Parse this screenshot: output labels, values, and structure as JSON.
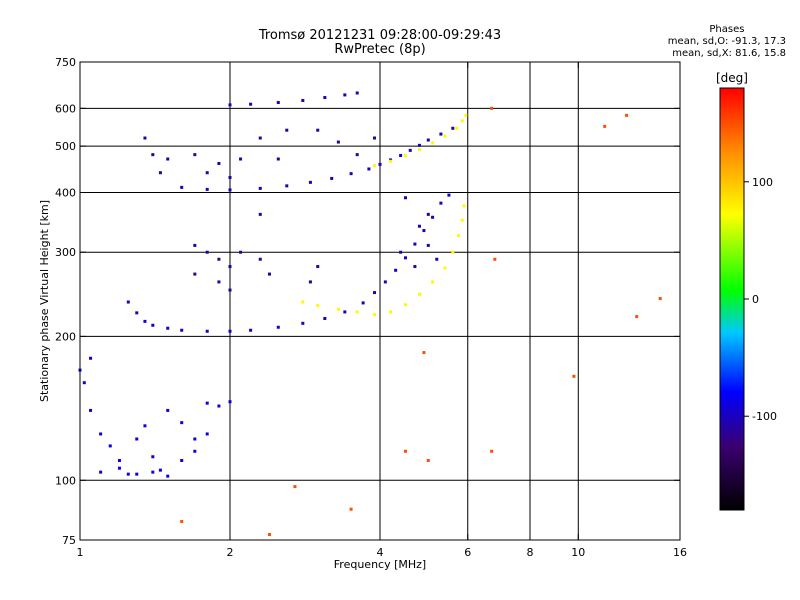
{
  "header": {
    "title": "Tromsø 20121231 09:28:00-09:29:43",
    "subtitle": "RwPretec (8p)"
  },
  "phases_box": {
    "heading": "Phases",
    "line_o": "mean, sd,O: -91.3, 17.3",
    "line_x": "mean, sd,X: 81.6, 15.8"
  },
  "chart_data": {
    "type": "scatter",
    "xlabel": "Frequency [MHz]",
    "ylabel": "Stationary phase Virtual Height [km]",
    "x_scale": "log",
    "y_scale": "log",
    "xlim": [
      1,
      16
    ],
    "ylim": [
      75,
      750
    ],
    "x_ticks": [
      1,
      2,
      4,
      6,
      8,
      10,
      16
    ],
    "y_ticks": [
      75,
      100,
      200,
      300,
      400,
      500,
      600,
      750
    ],
    "grid": true,
    "colorbar": {
      "label": "[deg]",
      "range": [
        -180,
        180
      ],
      "ticks": [
        100,
        0,
        -100
      ],
      "colormap": "rainbow"
    },
    "series": [
      {
        "color_value": -100,
        "points": [
          [
            1.25,
            236
          ],
          [
            1.3,
            224
          ],
          [
            1.35,
            215
          ],
          [
            1.4,
            211
          ],
          [
            1.5,
            208
          ],
          [
            1.6,
            206
          ],
          [
            1.8,
            205
          ],
          [
            2.0,
            205
          ],
          [
            2.2,
            206
          ],
          [
            2.5,
            209
          ],
          [
            2.8,
            213
          ],
          [
            3.1,
            218
          ],
          [
            3.4,
            225
          ],
          [
            3.7,
            235
          ],
          [
            3.9,
            247
          ],
          [
            4.1,
            260
          ],
          [
            4.3,
            275
          ],
          [
            4.5,
            292
          ],
          [
            4.7,
            312
          ],
          [
            4.9,
            333
          ],
          [
            5.1,
            355
          ],
          [
            5.3,
            380
          ],
          [
            5.5,
            395
          ]
        ]
      },
      {
        "color_value": 75,
        "points": [
          [
            2.8,
            236
          ],
          [
            3.0,
            232
          ],
          [
            3.3,
            228
          ],
          [
            3.6,
            225
          ],
          [
            3.9,
            222
          ],
          [
            4.2,
            225
          ],
          [
            4.5,
            233
          ],
          [
            4.8,
            245
          ],
          [
            5.1,
            260
          ],
          [
            5.4,
            278
          ],
          [
            5.6,
            300
          ],
          [
            5.75,
            325
          ],
          [
            5.85,
            350
          ],
          [
            5.9,
            375
          ]
        ]
      },
      {
        "color_value": -100,
        "points": [
          [
            1.6,
            410
          ],
          [
            1.8,
            406
          ],
          [
            2.0,
            405
          ],
          [
            2.3,
            408
          ],
          [
            2.6,
            413
          ],
          [
            2.9,
            420
          ],
          [
            3.2,
            428
          ],
          [
            3.5,
            438
          ],
          [
            3.8,
            448
          ],
          [
            4.0,
            458
          ],
          [
            4.2,
            468
          ],
          [
            4.4,
            478
          ],
          [
            4.6,
            490
          ],
          [
            4.8,
            502
          ],
          [
            5.0,
            515
          ],
          [
            5.3,
            530
          ],
          [
            5.6,
            545
          ]
        ]
      },
      {
        "color_value": 75,
        "points": [
          [
            3.9,
            455
          ],
          [
            4.2,
            465
          ],
          [
            4.5,
            478
          ],
          [
            4.8,
            492
          ],
          [
            5.1,
            508
          ],
          [
            5.4,
            525
          ],
          [
            5.7,
            545
          ],
          [
            5.85,
            565
          ],
          [
            5.95,
            580
          ]
        ]
      },
      {
        "color_value": -100,
        "points": [
          [
            2.0,
            610
          ],
          [
            2.2,
            612
          ],
          [
            2.5,
            617
          ],
          [
            2.8,
            623
          ],
          [
            3.1,
            632
          ],
          [
            3.4,
            640
          ],
          [
            3.6,
            646
          ]
        ]
      },
      {
        "color_value": -110,
        "points": [
          [
            1.35,
            520
          ],
          [
            1.4,
            480
          ],
          [
            1.45,
            440
          ],
          [
            1.5,
            470
          ],
          [
            1.7,
            480
          ],
          [
            1.8,
            440
          ],
          [
            1.9,
            460
          ],
          [
            2.0,
            430
          ],
          [
            2.1,
            470
          ],
          [
            2.3,
            520
          ],
          [
            2.6,
            540
          ],
          [
            1.7,
            310
          ],
          [
            1.8,
            300
          ],
          [
            1.9,
            290
          ],
          [
            2.0,
            280
          ],
          [
            2.1,
            300
          ],
          [
            1.7,
            270
          ],
          [
            1.9,
            260
          ],
          [
            2.0,
            250
          ],
          [
            2.3,
            290
          ],
          [
            2.4,
            270
          ],
          [
            2.9,
            260
          ],
          [
            3.0,
            280
          ],
          [
            2.5,
            470
          ],
          [
            2.3,
            360
          ],
          [
            3.0,
            540
          ],
          [
            3.3,
            510
          ],
          [
            3.6,
            480
          ],
          [
            3.9,
            520
          ],
          [
            4.5,
            390
          ],
          [
            4.8,
            340
          ],
          [
            5.0,
            310
          ],
          [
            5.2,
            290
          ],
          [
            5.0,
            360
          ],
          [
            4.7,
            280
          ],
          [
            4.4,
            300
          ]
        ]
      },
      {
        "color_value": -90,
        "points": [
          [
            1.05,
            140
          ],
          [
            1.1,
            125
          ],
          [
            1.15,
            118
          ],
          [
            1.2,
            110
          ],
          [
            1.25,
            103
          ],
          [
            1.3,
            122
          ],
          [
            1.35,
            130
          ],
          [
            1.4,
            112
          ],
          [
            1.45,
            105
          ],
          [
            1.5,
            140
          ],
          [
            1.6,
            132
          ],
          [
            1.7,
            122
          ],
          [
            1.8,
            145
          ],
          [
            1.9,
            143
          ],
          [
            2.0,
            146
          ],
          [
            1.1,
            104
          ],
          [
            1.2,
            106
          ],
          [
            1.3,
            103
          ],
          [
            1.4,
            104
          ],
          [
            1.5,
            102
          ],
          [
            1.0,
            170
          ],
          [
            1.05,
            180
          ],
          [
            1.02,
            160
          ],
          [
            1.6,
            110
          ],
          [
            1.7,
            115
          ],
          [
            1.8,
            125
          ]
        ]
      },
      {
        "color_value": 150,
        "points": [
          [
            2.7,
            97
          ],
          [
            1.6,
            82
          ],
          [
            2.4,
            77
          ],
          [
            3.5,
            87
          ],
          [
            4.5,
            115
          ],
          [
            5.0,
            110
          ],
          [
            6.7,
            600
          ],
          [
            6.8,
            290
          ],
          [
            11.3,
            550
          ],
          [
            12.5,
            580
          ],
          [
            13.1,
            220
          ],
          [
            14.6,
            240
          ],
          [
            9.8,
            165
          ],
          [
            6.7,
            115
          ],
          [
            4.9,
            185
          ]
        ]
      }
    ]
  }
}
